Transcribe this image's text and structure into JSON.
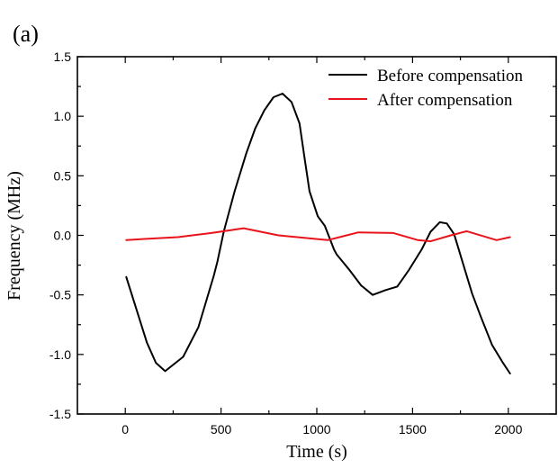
{
  "panel_label": "(a)",
  "chart_data": {
    "type": "line",
    "title": "",
    "xlabel": "Time (s)",
    "ylabel": "Frequency (MHz)",
    "xlim": [
      -250,
      2250
    ],
    "ylim": [
      -1.5,
      1.5
    ],
    "xticks": [
      0,
      500,
      1000,
      1500,
      2000
    ],
    "xtick_labels": [
      "0",
      "500",
      "1000",
      "1500",
      "2000"
    ],
    "xminor_step": 250,
    "yticks": [
      -1.5,
      -1.0,
      -0.5,
      0.0,
      0.5,
      1.0,
      1.5
    ],
    "ytick_labels": [
      "-1.5",
      "-1.0",
      "-0.5",
      "0.0",
      "0.5",
      "1.0",
      "1.5"
    ],
    "yminor_step": 0.25,
    "grid": false,
    "legend_position": "top-right",
    "series": [
      {
        "name": "Before compensation",
        "color": "#000000",
        "x": [
          5,
          52,
          113,
          160,
          208,
          302,
          382,
          462,
          481,
          514,
          571,
          632,
          679,
          726,
          774,
          821,
          868,
          910,
          934,
          962,
          1005,
          1042,
          1090,
          1104,
          1170,
          1231,
          1292,
          1358,
          1420,
          1481,
          1547,
          1594,
          1642,
          1679,
          1717,
          1764,
          1811,
          1858,
          1915,
          1972,
          2009
        ],
        "y": [
          -0.35,
          -0.59,
          -0.9,
          -1.07,
          -1.14,
          -1.02,
          -0.77,
          -0.34,
          -0.22,
          0.03,
          0.37,
          0.69,
          0.9,
          1.05,
          1.16,
          1.19,
          1.12,
          0.94,
          0.67,
          0.37,
          0.16,
          0.08,
          -0.12,
          -0.16,
          -0.29,
          -0.42,
          -0.5,
          -0.46,
          -0.43,
          -0.29,
          -0.12,
          0.03,
          0.11,
          0.1,
          0.01,
          -0.24,
          -0.49,
          -0.69,
          -0.92,
          -1.07,
          -1.16
        ]
      },
      {
        "name": "After compensation",
        "color": "#e8141b",
        "x": [
          5,
          100,
          274,
          450,
          618,
          800,
          1057,
          1217,
          1400,
          1528,
          1594,
          1700,
          1783,
          1939,
          2009
        ],
        "y": [
          -0.04,
          -0.03,
          -0.015,
          0.02,
          0.06,
          0.0,
          -0.04,
          0.025,
          0.02,
          -0.04,
          -0.05,
          0.0,
          0.035,
          -0.04,
          -0.015
        ]
      }
    ]
  }
}
